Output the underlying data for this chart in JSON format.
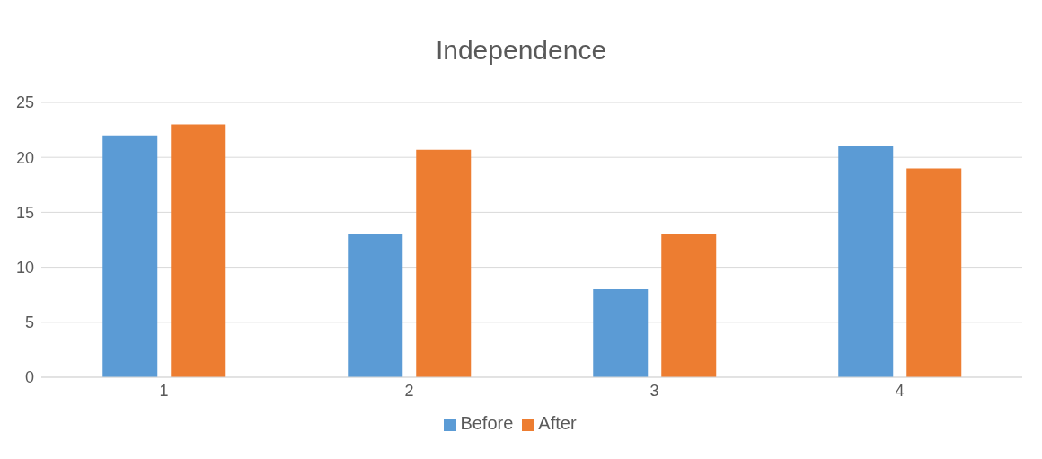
{
  "chart_data": {
    "type": "bar",
    "title": "Independence",
    "categories": [
      "1",
      "2",
      "3",
      "4"
    ],
    "series": [
      {
        "name": "Before",
        "color": "#5b9bd5",
        "values": [
          22,
          13,
          8,
          21
        ]
      },
      {
        "name": "After",
        "color": "#ed7d31",
        "values": [
          23,
          20.7,
          13,
          19
        ]
      }
    ],
    "ylim": [
      0,
      25
    ],
    "yticks": [
      0,
      5,
      10,
      15,
      20,
      25
    ],
    "grid": "y",
    "legend": "bottom"
  }
}
